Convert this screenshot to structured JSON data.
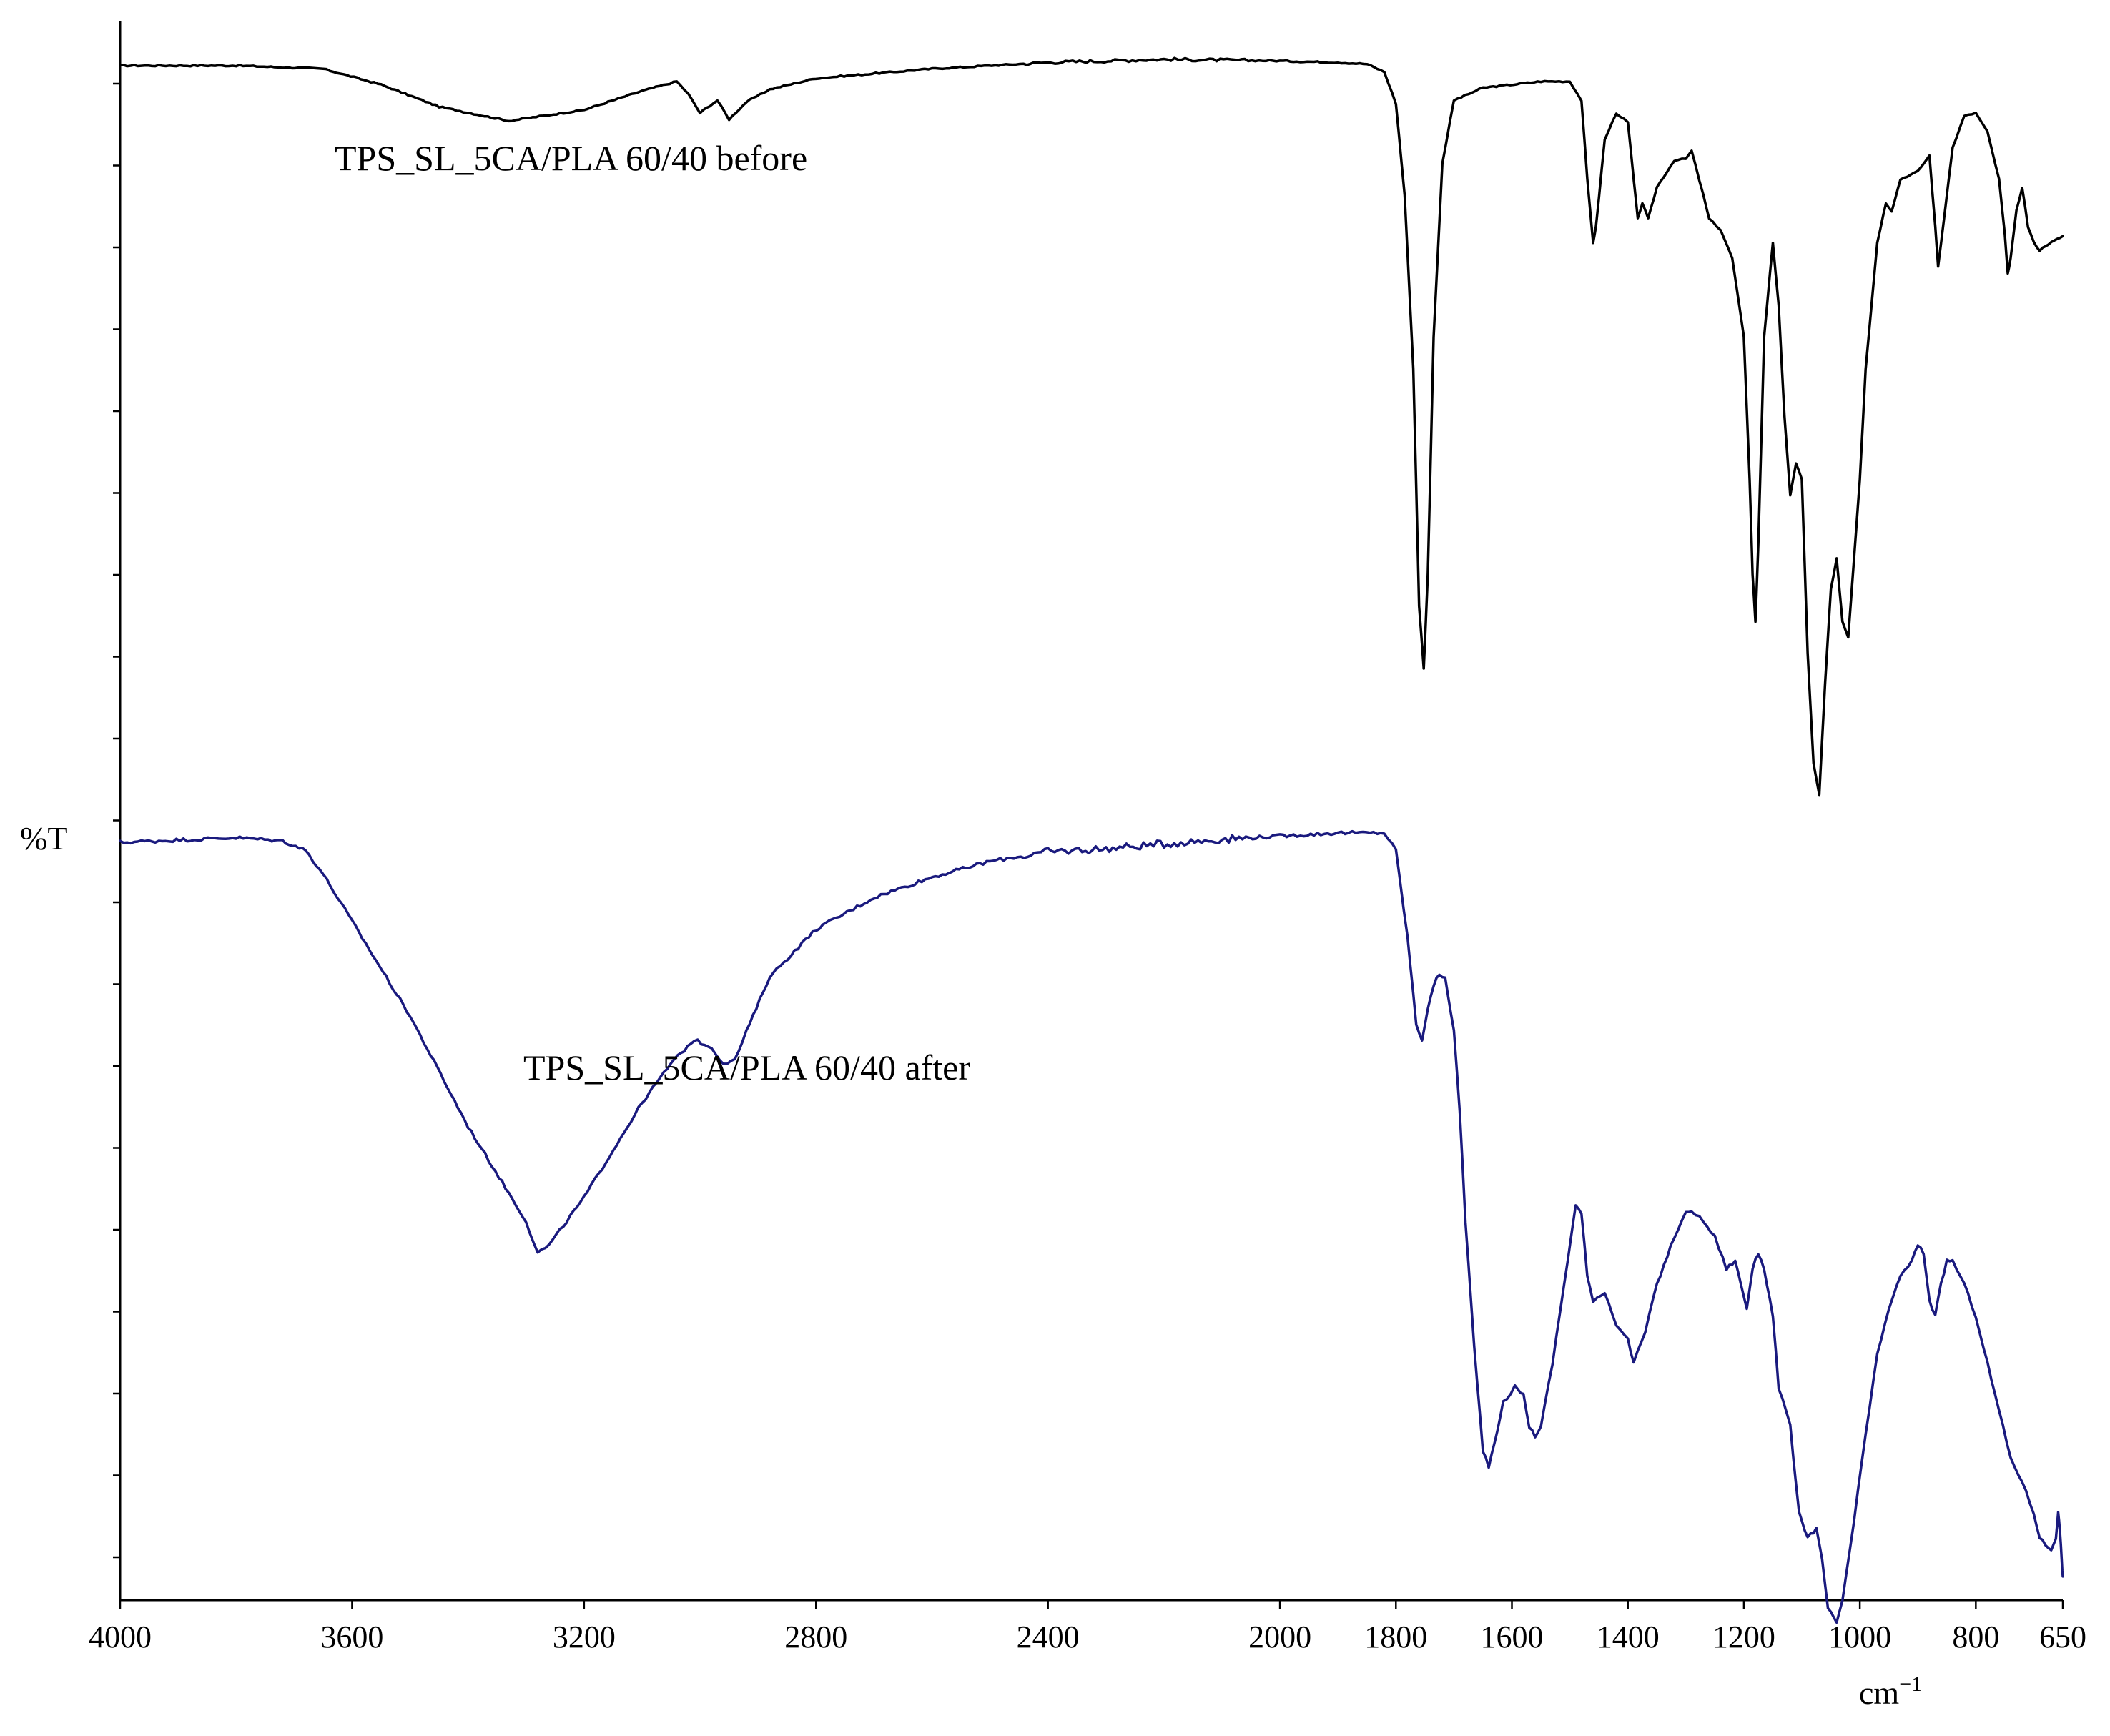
{
  "chart_data": {
    "type": "line",
    "xlabel": "cm⁻¹",
    "ylabel": "%T",
    "x_reversed": true,
    "xlim": [
      4000,
      650
    ],
    "ylim": [
      0,
      100
    ],
    "x_ticks": [
      4000,
      3600,
      3200,
      2800,
      2400,
      2000,
      1800,
      1600,
      1400,
      1200,
      1000,
      800,
      650
    ],
    "grid": false,
    "legend": "none",
    "series": [
      {
        "name": "TPS_SL_5CA/PLA 60/40 before",
        "color": "#000000",
        "points": [
          [
            4000,
            97.2
          ],
          [
            3800,
            97.2
          ],
          [
            3650,
            97.0
          ],
          [
            3550,
            96.0
          ],
          [
            3450,
            94.6
          ],
          [
            3330,
            93.7
          ],
          [
            3200,
            94.4
          ],
          [
            3100,
            95.6
          ],
          [
            3040,
            96.2
          ],
          [
            3020,
            95.4
          ],
          [
            3000,
            94.2
          ],
          [
            2990,
            94.5
          ],
          [
            2970,
            95.0
          ],
          [
            2950,
            93.8
          ],
          [
            2920,
            94.9
          ],
          [
            2880,
            95.7
          ],
          [
            2800,
            96.4
          ],
          [
            2600,
            97.0
          ],
          [
            2400,
            97.4
          ],
          [
            2200,
            97.6
          ],
          [
            2000,
            97.5
          ],
          [
            1900,
            97.4
          ],
          [
            1850,
            97.3
          ],
          [
            1820,
            96.8
          ],
          [
            1800,
            94.8
          ],
          [
            1785,
            89.0
          ],
          [
            1770,
            78.0
          ],
          [
            1760,
            63.0
          ],
          [
            1752,
            59.0
          ],
          [
            1745,
            65.0
          ],
          [
            1735,
            80.0
          ],
          [
            1720,
            91.0
          ],
          [
            1700,
            95.0
          ],
          [
            1650,
            95.8
          ],
          [
            1550,
            96.2
          ],
          [
            1500,
            96.2
          ],
          [
            1480,
            95.0
          ],
          [
            1470,
            90.0
          ],
          [
            1460,
            86.0
          ],
          [
            1455,
            87.0
          ],
          [
            1440,
            92.5
          ],
          [
            1420,
            94.2
          ],
          [
            1400,
            93.6
          ],
          [
            1390,
            90.0
          ],
          [
            1383,
            87.5
          ],
          [
            1375,
            88.5
          ],
          [
            1365,
            87.5
          ],
          [
            1350,
            89.5
          ],
          [
            1320,
            91.2
          ],
          [
            1300,
            91.3
          ],
          [
            1290,
            91.8
          ],
          [
            1270,
            89.0
          ],
          [
            1260,
            87.5
          ],
          [
            1240,
            86.8
          ],
          [
            1220,
            85.0
          ],
          [
            1200,
            80.0
          ],
          [
            1190,
            71.0
          ],
          [
            1185,
            65.0
          ],
          [
            1180,
            62.0
          ],
          [
            1175,
            67.0
          ],
          [
            1165,
            80.0
          ],
          [
            1150,
            86.0
          ],
          [
            1140,
            82.0
          ],
          [
            1130,
            75.0
          ],
          [
            1120,
            70.0
          ],
          [
            1110,
            72.0
          ],
          [
            1100,
            71.0
          ],
          [
            1090,
            60.0
          ],
          [
            1080,
            53.0
          ],
          [
            1070,
            51.0
          ],
          [
            1060,
            58.0
          ],
          [
            1050,
            64.0
          ],
          [
            1040,
            66.0
          ],
          [
            1030,
            62.0
          ],
          [
            1020,
            61.0
          ],
          [
            1000,
            71.0
          ],
          [
            990,
            78.0
          ],
          [
            970,
            86.0
          ],
          [
            955,
            88.5
          ],
          [
            945,
            88.0
          ],
          [
            930,
            90.0
          ],
          [
            900,
            90.5
          ],
          [
            880,
            91.5
          ],
          [
            870,
            87.0
          ],
          [
            865,
            84.5
          ],
          [
            860,
            86.0
          ],
          [
            840,
            92.0
          ],
          [
            820,
            94.0
          ],
          [
            800,
            94.2
          ],
          [
            780,
            93.0
          ],
          [
            760,
            90.0
          ],
          [
            750,
            86.5
          ],
          [
            745,
            84.0
          ],
          [
            740,
            85.0
          ],
          [
            730,
            88.0
          ],
          [
            720,
            89.5
          ],
          [
            710,
            87.0
          ],
          [
            700,
            86.0
          ],
          [
            690,
            85.5
          ],
          [
            680,
            85.8
          ],
          [
            670,
            86.0
          ],
          [
            660,
            86.2
          ],
          [
            650,
            86.4
          ]
        ]
      },
      {
        "name": "TPS_SL_5CA/PLA 60/40 after",
        "color": "#1a1a7e",
        "points": [
          [
            4000,
            48.0
          ],
          [
            3800,
            48.3
          ],
          [
            3720,
            48.1
          ],
          [
            3680,
            47.5
          ],
          [
            3650,
            46.0
          ],
          [
            3600,
            43.0
          ],
          [
            3500,
            37.0
          ],
          [
            3400,
            30.0
          ],
          [
            3300,
            24.0
          ],
          [
            3280,
            22.0
          ],
          [
            3260,
            22.5
          ],
          [
            3200,
            25.5
          ],
          [
            3150,
            28.5
          ],
          [
            3100,
            31.5
          ],
          [
            3050,
            34.0
          ],
          [
            3010,
            35.5
          ],
          [
            2980,
            35.0
          ],
          [
            2960,
            34.0
          ],
          [
            2940,
            34.2
          ],
          [
            2920,
            36.0
          ],
          [
            2880,
            39.5
          ],
          [
            2800,
            42.5
          ],
          [
            2700,
            44.5
          ],
          [
            2600,
            45.8
          ],
          [
            2500,
            46.8
          ],
          [
            2400,
            47.4
          ],
          [
            2300,
            47.6
          ],
          [
            2200,
            47.9
          ],
          [
            2100,
            48.2
          ],
          [
            2000,
            48.4
          ],
          [
            1900,
            48.6
          ],
          [
            1820,
            48.6
          ],
          [
            1800,
            47.5
          ],
          [
            1780,
            42.0
          ],
          [
            1765,
            36.5
          ],
          [
            1755,
            35.5
          ],
          [
            1745,
            37.5
          ],
          [
            1730,
            39.5
          ],
          [
            1715,
            39.5
          ],
          [
            1700,
            36.0
          ],
          [
            1690,
            31.0
          ],
          [
            1680,
            24.0
          ],
          [
            1665,
            16.0
          ],
          [
            1650,
            9.5
          ],
          [
            1640,
            8.5
          ],
          [
            1630,
            10.0
          ],
          [
            1615,
            12.5
          ],
          [
            1595,
            13.5
          ],
          [
            1580,
            13.0
          ],
          [
            1570,
            11.0
          ],
          [
            1560,
            10.4
          ],
          [
            1550,
            11.0
          ],
          [
            1530,
            15.0
          ],
          [
            1510,
            20.0
          ],
          [
            1490,
            25.0
          ],
          [
            1480,
            24.5
          ],
          [
            1470,
            20.5
          ],
          [
            1460,
            19.0
          ],
          [
            1440,
            19.5
          ],
          [
            1420,
            17.5
          ],
          [
            1400,
            16.5
          ],
          [
            1390,
            15.0
          ],
          [
            1370,
            17.0
          ],
          [
            1350,
            20.0
          ],
          [
            1320,
            23.0
          ],
          [
            1300,
            24.5
          ],
          [
            1290,
            24.7
          ],
          [
            1270,
            24.0
          ],
          [
            1250,
            23.0
          ],
          [
            1230,
            21.0
          ],
          [
            1215,
            21.5
          ],
          [
            1205,
            20.0
          ],
          [
            1195,
            18.5
          ],
          [
            1185,
            21.0
          ],
          [
            1175,
            22.0
          ],
          [
            1165,
            21.0
          ],
          [
            1150,
            18.0
          ],
          [
            1140,
            13.5
          ],
          [
            1120,
            11.0
          ],
          [
            1105,
            5.5
          ],
          [
            1090,
            4.0
          ],
          [
            1075,
            4.5
          ],
          [
            1065,
            2.5
          ],
          [
            1055,
            -0.5
          ],
          [
            1040,
            -1.5
          ],
          [
            1030,
            0.0
          ],
          [
            1010,
            5.0
          ],
          [
            990,
            10.5
          ],
          [
            970,
            15.5
          ],
          [
            950,
            18.5
          ],
          [
            930,
            20.5
          ],
          [
            910,
            21.5
          ],
          [
            900,
            22.5
          ],
          [
            890,
            22.0
          ],
          [
            880,
            19.0
          ],
          [
            870,
            18.0
          ],
          [
            860,
            20.0
          ],
          [
            850,
            21.5
          ],
          [
            840,
            21.5
          ],
          [
            820,
            20.0
          ],
          [
            800,
            18.0
          ],
          [
            780,
            15.0
          ],
          [
            760,
            12.0
          ],
          [
            740,
            9.0
          ],
          [
            720,
            7.5
          ],
          [
            700,
            5.5
          ],
          [
            690,
            4.0
          ],
          [
            680,
            3.5
          ],
          [
            670,
            3.2
          ],
          [
            662,
            4.0
          ],
          [
            658,
            5.5
          ],
          [
            655,
            4.5
          ],
          [
            652,
            2.5
          ],
          [
            650,
            1.5
          ]
        ]
      }
    ]
  }
}
